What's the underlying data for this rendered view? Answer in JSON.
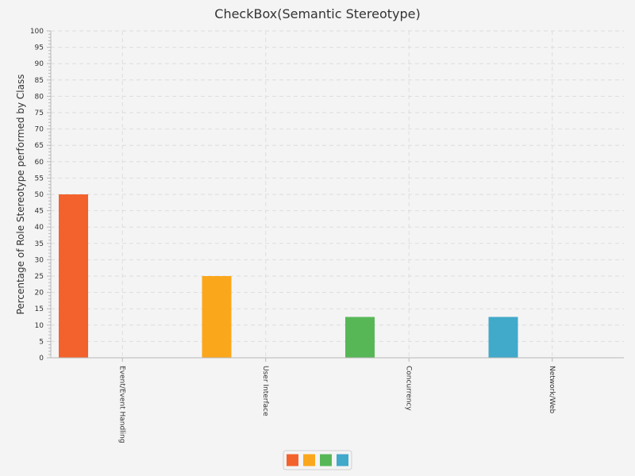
{
  "chart_data": {
    "type": "bar",
    "title": "CheckBox(Semantic Stereotype)",
    "xlabel": "",
    "ylabel": "Percentage of Role Stereotype performed by Class",
    "ylim": [
      0,
      100
    ],
    "ytick_step": 5,
    "minor_tick_step": 1,
    "categories": [
      "Event/Event Handling",
      "User Interface",
      "Concurrency",
      "Network/Web"
    ],
    "values": [
      50,
      25,
      12.5,
      12.5
    ],
    "colors": [
      "#f3622d",
      "#fba71b",
      "#57b757",
      "#41a9c9"
    ],
    "grid": true,
    "legend": "bottom-center"
  }
}
